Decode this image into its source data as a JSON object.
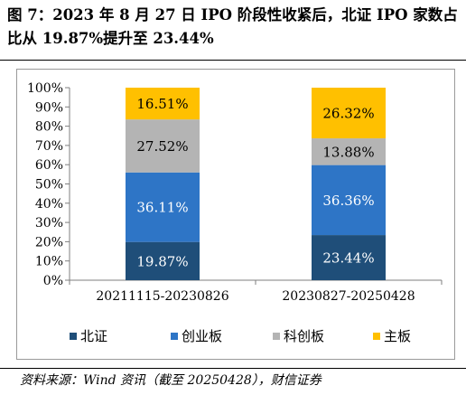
{
  "title": "图 7：2023 年 8 月 27 日 IPO 阶段性收紧后，北证 IPO 家数占比从 19.87%提升至 23.44%",
  "source": "资料来源：Wind 资讯（截至 20250428），财信证券",
  "chart_data": {
    "type": "bar",
    "stacked": true,
    "categories": [
      "20211115-20230826",
      "20230827-20250428"
    ],
    "series": [
      {
        "name": "北证",
        "color": "#1f4e79",
        "values": [
          19.87,
          23.44
        ],
        "labels": [
          "19.87%",
          "23.44%"
        ]
      },
      {
        "name": "创业板",
        "color": "#2e75c6",
        "values": [
          36.11,
          36.36
        ],
        "labels": [
          "36.11%",
          "36.36%"
        ]
      },
      {
        "name": "科创板",
        "color": "#b4b4b4",
        "values": [
          27.52,
          13.88
        ],
        "labels": [
          "27.52%",
          "13.88%"
        ]
      },
      {
        "name": "主板",
        "color": "#ffc000",
        "values": [
          16.51,
          26.32
        ],
        "labels": [
          "16.51%",
          "26.32%"
        ]
      }
    ],
    "ylim": [
      0,
      100
    ],
    "yticks": [
      "0%",
      "10%",
      "20%",
      "30%",
      "40%",
      "50%",
      "60%",
      "70%",
      "80%",
      "90%",
      "100%"
    ],
    "grid": false,
    "legend": "bottom"
  }
}
